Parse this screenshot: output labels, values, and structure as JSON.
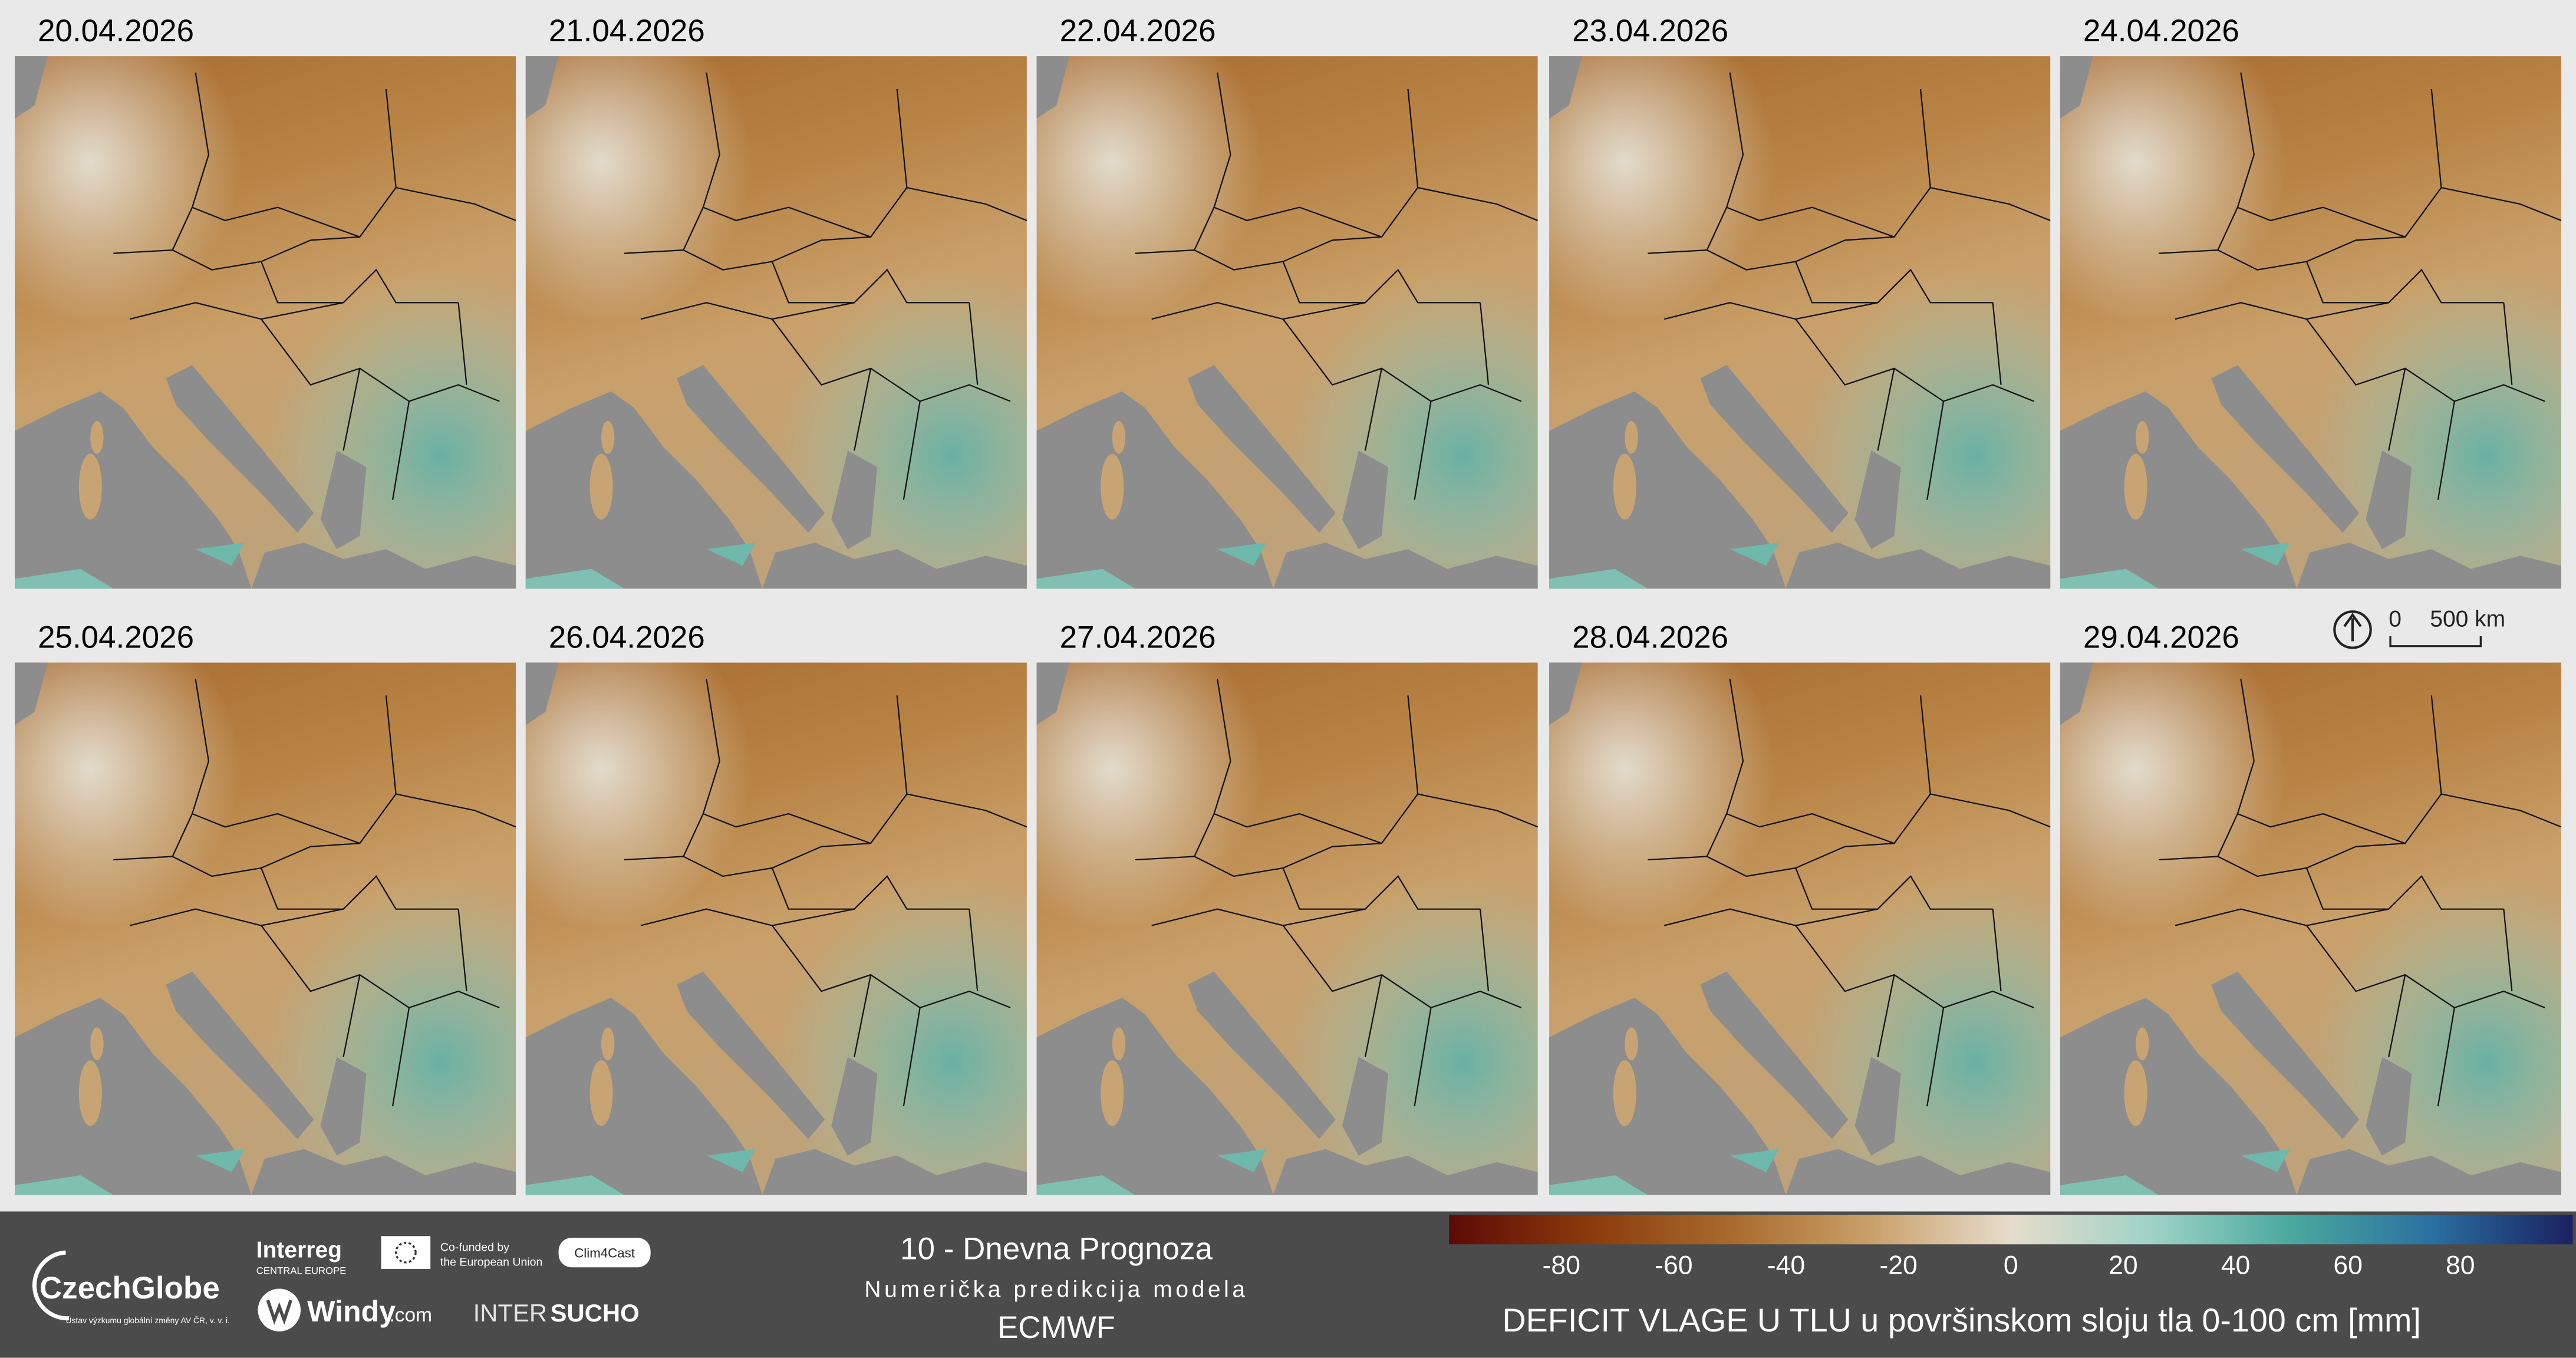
{
  "panels": {
    "dates": [
      "20.04.2026",
      "21.04.2026",
      "22.04.2026",
      "23.04.2026",
      "24.04.2026",
      "25.04.2026",
      "26.04.2026",
      "27.04.2026",
      "28.04.2026",
      "29.04.2026"
    ]
  },
  "scale_bar": {
    "start": "0",
    "end": "500 km"
  },
  "footer": {
    "czechglobe": "CzechGlobe",
    "czechglobe_sub": "Ústav výzkumu globální změny AV ČR, v. v. i.",
    "interreg": "Interreg",
    "interreg_sub": "CENTRAL EUROPE",
    "eu_line1": "Co-funded by",
    "eu_line2": "the European Union",
    "clim4cast": "Clim4Cast",
    "windy": "Windy",
    "windy_com": ".com",
    "intersucho_a": "INTER",
    "intersucho_b": "SUCHO",
    "title": "10 - Dnevna Prognoza",
    "subtitle": "Numerička predikcija modela",
    "model": "ECMWF"
  },
  "colorbar": {
    "label": "DEFICIT VLAGE U TLU u površinskom sloju tla 0-100 cm [mm]",
    "lim": [
      -100,
      100
    ],
    "ticks": [
      -80,
      -60,
      -40,
      -20,
      0,
      20,
      40,
      60,
      80
    ],
    "colors": [
      "#5c0a06",
      "#8a3a0c",
      "#a86a2c",
      "#c9a06a",
      "#e6dccb",
      "#9fd3c6",
      "#4aa89e",
      "#2a6fa0",
      "#1b2160"
    ]
  }
}
